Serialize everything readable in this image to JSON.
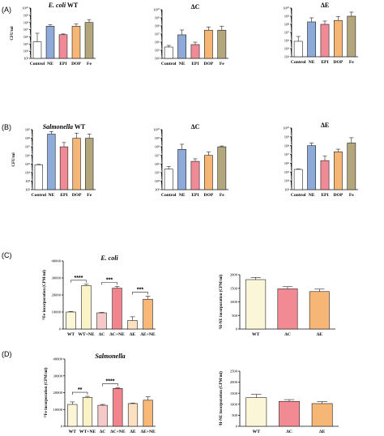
{
  "panel_labels": [
    "(A)",
    "(B)",
    "(C)",
    "(D)"
  ],
  "colors": {
    "Control": "#ffffff",
    "NE": "#8eaad8",
    "EPI": "#f08a96",
    "DOP": "#f6b676",
    "Fe": "#b3a67c",
    "WT_plain": "#fbf6d8",
    "WT_NE": "#fbf3c8",
    "dC_plain": "#f6c9c9",
    "dC_NE": "#f2848e",
    "dE_plain": "#fbe1c2",
    "dE_NE": "#f9b878",
    "ne_WT": "#fbf6d8",
    "ne_dC": "#f18a92",
    "ne_dE": "#f6b676"
  },
  "chart_data": [
    {
      "panel": "A",
      "type": "bar",
      "title": "E. coli WT",
      "title_italic": "E. coli",
      "title_rest": " WT",
      "ylabel": "CFU/ml",
      "scale": "log",
      "ylim": [
        1000,
        10000000000
      ],
      "yticks": [
        "10³",
        "10⁴",
        "10⁵",
        "10⁶",
        "10⁷",
        "10⁸",
        "10⁹",
        "10¹⁰"
      ],
      "categories": [
        "Control",
        "NE",
        "EPI",
        "DOP",
        "Fe"
      ],
      "values": [
        200000,
        30000000,
        2000000,
        30000000,
        100000000
      ],
      "errors": [
        1.2,
        0.2,
        0.1,
        0.3,
        0.4
      ]
    },
    {
      "panel": "A",
      "type": "bar",
      "title": "ΔC",
      "ylabel": "",
      "scale": "log",
      "ylim": [
        10000,
        10000000000
      ],
      "yticks": [
        "10⁴",
        "10⁵",
        "10⁶",
        "10⁷",
        "10⁸",
        "10⁹",
        "10¹⁰"
      ],
      "categories": [
        "Control",
        "NE",
        "EPI",
        "DOP",
        "Fe"
      ],
      "values": [
        250000,
        8000000,
        500000,
        30000000,
        30000000
      ],
      "errors": [
        0.2,
        0.6,
        0.3,
        0.4,
        0.5
      ]
    },
    {
      "panel": "A",
      "type": "bar",
      "title": "ΔE",
      "ylabel": "",
      "scale": "log",
      "ylim": [
        10000,
        10000000000
      ],
      "yticks": [
        "10⁴",
        "10⁵",
        "10⁶",
        "10⁷",
        "10⁸",
        "10⁹",
        "10¹⁰"
      ],
      "categories": [
        "Control",
        "NE",
        "EPI",
        "DOP",
        "Fe"
      ],
      "values": [
        800000,
        200000000,
        100000000,
        300000000,
        1000000000
      ],
      "errors": [
        0.6,
        0.5,
        0.4,
        0.5,
        0.5
      ]
    },
    {
      "panel": "B",
      "type": "bar",
      "title": "Salmonella WT",
      "title_italic": "Salmonella",
      "title_rest": " WT",
      "ylabel": "CFU/ml",
      "scale": "log",
      "ylim": [
        100,
        1000000000
      ],
      "yticks": [
        "10²",
        "10³",
        "10⁴",
        "10⁵",
        "10⁶",
        "10⁷",
        "10⁸",
        "10⁹"
      ],
      "categories": [
        "Control",
        "NE",
        "EPI",
        "DOP",
        "Fe"
      ],
      "values": [
        80000,
        300000000,
        10000000,
        100000000,
        100000000
      ],
      "errors": [
        0.05,
        0.3,
        0.5,
        0.6,
        0.5
      ]
    },
    {
      "panel": "B",
      "type": "bar",
      "title": "ΔC",
      "ylabel": "",
      "scale": "log",
      "ylim": [
        1000,
        10000000000
      ],
      "yticks": [
        "10³",
        "10⁴",
        "10⁵",
        "10⁶",
        "10⁷",
        "10⁸",
        "10⁹",
        "10¹⁰"
      ],
      "categories": [
        "Control",
        "NE",
        "EPI",
        "DOP",
        "Fe"
      ],
      "values": [
        250000,
        50000000,
        2000000,
        10000000,
        100000000
      ],
      "errors": [
        0.3,
        0.6,
        0.3,
        0.4,
        0.1
      ]
    },
    {
      "panel": "B",
      "type": "bar",
      "title": "ΔE",
      "ylabel": "",
      "scale": "log",
      "ylim": [
        1000,
        10000000000
      ],
      "yticks": [
        "10³",
        "10⁴",
        "10⁵",
        "10⁶",
        "10⁷",
        "10⁸",
        "10⁹",
        "10¹⁰"
      ],
      "categories": [
        "Control",
        "NE",
        "EPI",
        "DOP",
        "Fe"
      ],
      "values": [
        200000,
        100000000,
        2000000,
        20000000,
        200000000
      ],
      "errors": [
        0.05,
        0.3,
        0.5,
        0.3,
        0.6
      ]
    },
    {
      "panel": "C",
      "type": "bar",
      "title": "E. coli",
      "title_italic": "E. coli",
      "ylabel": "⁵⁵Fe incorporation (CPM/ml)",
      "scale": "linear",
      "ylim": [
        0,
        40000
      ],
      "yticks": [
        "0",
        "10000",
        "20000",
        "30000",
        "40000"
      ],
      "categories": [
        "WT",
        "WT+NE",
        "ΔC",
        "ΔC+NE",
        "ΔE",
        "ΔE+NE"
      ],
      "values": [
        10000,
        25500,
        9500,
        24000,
        5000,
        17500
      ],
      "errors": [
        300,
        800,
        300,
        1000,
        2200,
        1800
      ],
      "significance": [
        {
          "from": 0,
          "to": 1,
          "label": "****"
        },
        {
          "from": 2,
          "to": 3,
          "label": "***"
        },
        {
          "from": 4,
          "to": 5,
          "label": "***"
        }
      ]
    },
    {
      "panel": "C",
      "type": "bar",
      "title": "",
      "ylabel": "³H-NE incorporation (CPM/ml)",
      "scale": "linear",
      "ylim": [
        0,
        2000
      ],
      "yticks": [
        "0",
        "500",
        "1000",
        "1500",
        "2000"
      ],
      "categories": [
        "WT",
        "ΔC",
        "ΔE"
      ],
      "values": [
        1820,
        1480,
        1380
      ],
      "errors": [
        80,
        80,
        90
      ]
    },
    {
      "panel": "D",
      "type": "bar",
      "title": "Salmonella",
      "title_italic": "Salmonella",
      "ylabel": "⁵⁵Fe incorporation (CPM/ml)",
      "scale": "linear",
      "ylim": [
        0,
        40000
      ],
      "yticks": [
        "0",
        "10000",
        "20000",
        "30000",
        "40000"
      ],
      "categories": [
        "WT",
        "WT+NE",
        "ΔC",
        "ΔC+NE",
        "ΔE",
        "ΔE+NE"
      ],
      "values": [
        13000,
        17200,
        12500,
        22500,
        13500,
        15500
      ],
      "errors": [
        1500,
        600,
        500,
        400,
        300,
        2000
      ],
      "significance": [
        {
          "from": 0,
          "to": 1,
          "label": "**"
        },
        {
          "from": 2,
          "to": 3,
          "label": "****"
        }
      ]
    },
    {
      "panel": "D",
      "type": "bar",
      "title": "",
      "ylabel": "³H-NE incorporation (CPM/ml)",
      "scale": "linear",
      "ylim": [
        0,
        2500
      ],
      "yticks": [
        "0",
        "500",
        "1000",
        "1500",
        "2000",
        "2500"
      ],
      "categories": [
        "WT",
        "ΔC",
        "ΔE"
      ],
      "values": [
        1300,
        1130,
        1030
      ],
      "errors": [
        150,
        80,
        90
      ]
    }
  ]
}
